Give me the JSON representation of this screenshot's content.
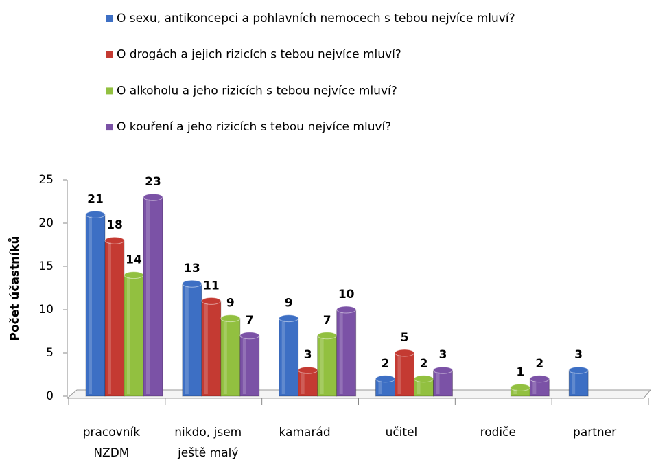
{
  "chart_data": {
    "type": "bar",
    "y_label": "Počet účastníků",
    "categories": [
      [
        "pracovník",
        "NZDM"
      ],
      [
        "nikdo, jsem",
        "ještě malý"
      ],
      [
        "kamarád"
      ],
      [
        "učitel"
      ],
      [
        "rodiče"
      ],
      [
        "partner"
      ]
    ],
    "series": [
      {
        "name": "O sexu, antikoncepci a pohlavních nemocech s tebou nejvíce mluví?",
        "color": "#3d6fc4",
        "values": [
          21,
          13,
          9,
          2,
          null,
          3
        ]
      },
      {
        "name": "O drogách a jejich rizicích s tebou nejvíce mluví?",
        "color": "#c43a32",
        "values": [
          18,
          11,
          3,
          5,
          null,
          null
        ]
      },
      {
        "name": "O alkoholu a jeho rizicích s tebou nejvíce mluví?",
        "color": "#92c040",
        "values": [
          14,
          9,
          7,
          2,
          1,
          null
        ]
      },
      {
        "name": "O kouření a jeho rizicích s tebou nejvíce mluví?",
        "color": "#7b52a6",
        "values": [
          23,
          7,
          10,
          3,
          2,
          null
        ]
      }
    ],
    "ylim": [
      0,
      25
    ],
    "yticks": [
      0,
      5,
      10,
      15,
      20,
      25
    ],
    "legend": "top"
  }
}
